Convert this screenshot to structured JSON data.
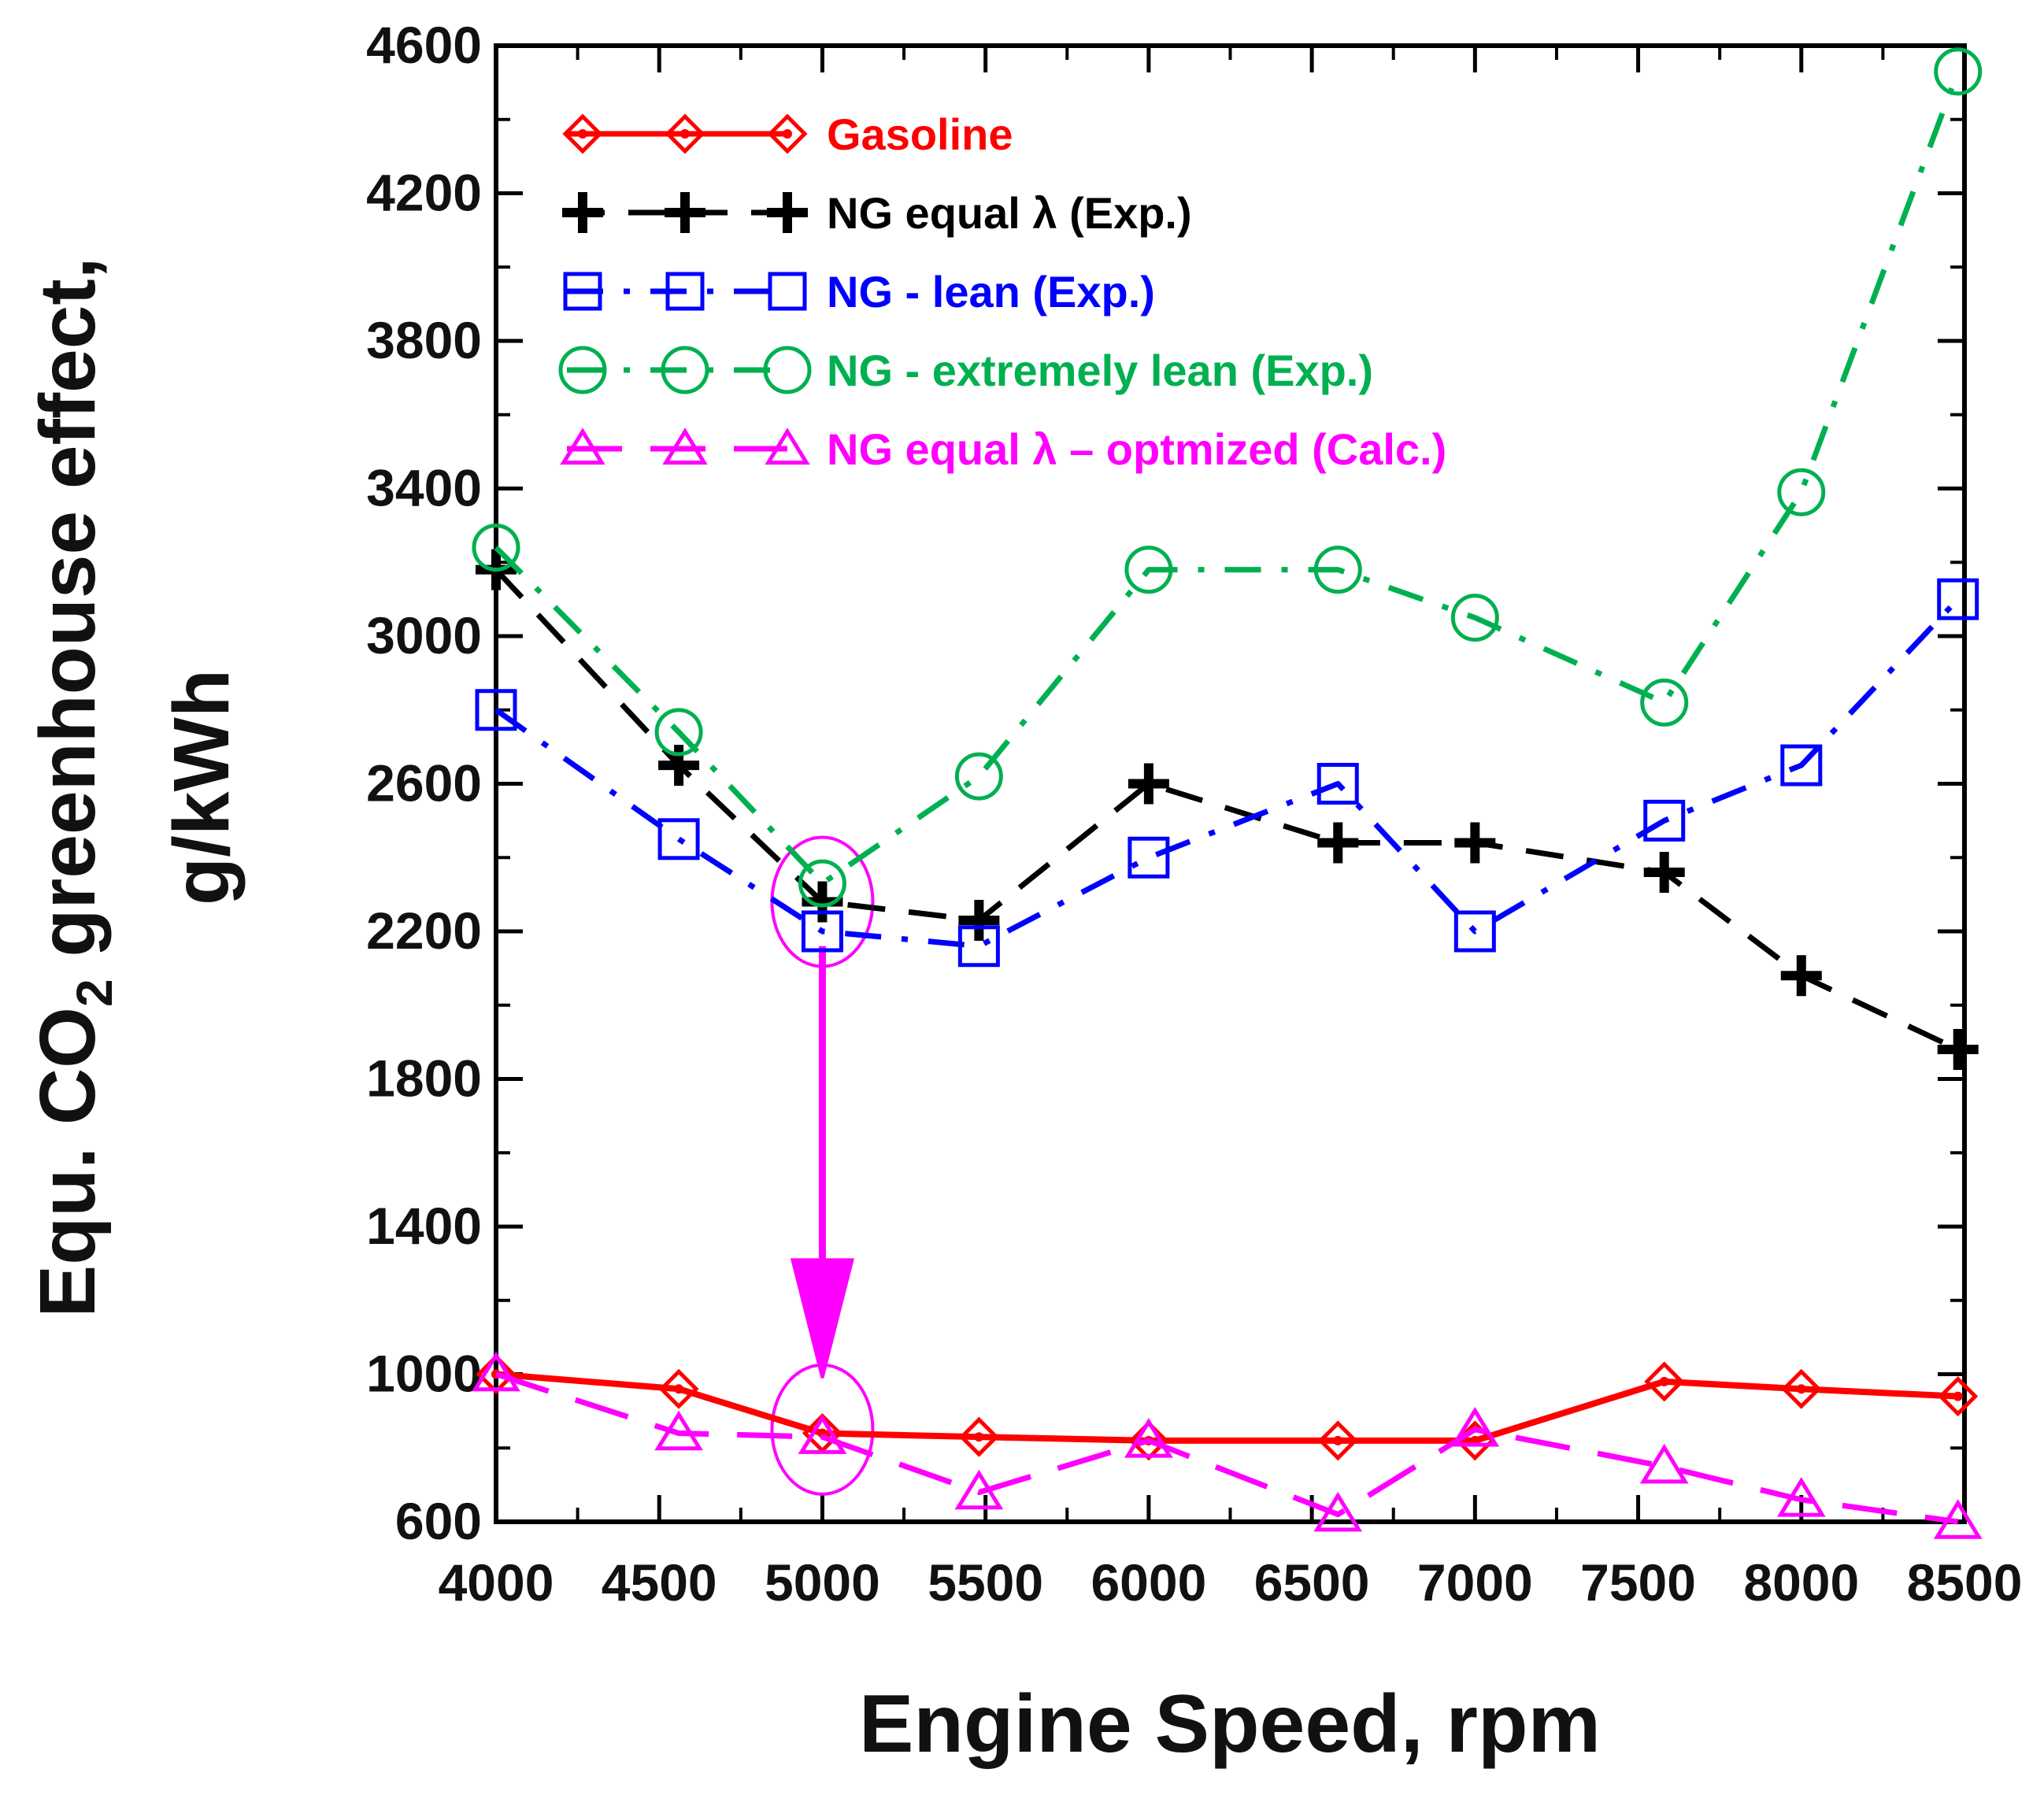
{
  "chart_data": {
    "type": "line",
    "title": "",
    "xlabel": "Engine Speed, rpm",
    "ylabel_parts": {
      "main": "Equ. CO",
      "subscript": "2",
      "rest": " greenhouse effect,",
      "line2": "g/kWh"
    },
    "xlim": [
      4000,
      8500
    ],
    "ylim": [
      600,
      4600
    ],
    "x_ticks": [
      "4000",
      "4500",
      "5000",
      "5500",
      "6000",
      "6500",
      "7000",
      "7500",
      "8000",
      "8500"
    ],
    "y_ticks": [
      "600",
      "1000",
      "1400",
      "1800",
      "2200",
      "2600",
      "3000",
      "3400",
      "3800",
      "4200",
      "4600"
    ],
    "legend_position": "top-left",
    "series": [
      {
        "name": "Gasoline",
        "color": "#ff0000",
        "marker": "diamond",
        "dash": "solid",
        "x": [
          4000,
          4560,
          5000,
          5480,
          6000,
          6580,
          7000,
          7580,
          8000,
          8480
        ],
        "y": [
          1000,
          960,
          840,
          830,
          820,
          820,
          820,
          980,
          960,
          940
        ]
      },
      {
        "name": "NG equal λ (Exp.)",
        "color": "#000000",
        "marker": "plus",
        "dash": "dash",
        "x": [
          4000,
          4560,
          5000,
          5480,
          6000,
          6580,
          7000,
          7580,
          8000,
          8480
        ],
        "y": [
          3180,
          2650,
          2280,
          2230,
          2600,
          2440,
          2440,
          2360,
          2080,
          1880
        ]
      },
      {
        "name": "NG - lean (Exp.)",
        "color": "#0000ff",
        "marker": "square",
        "dash": "dashdot",
        "x": [
          4000,
          4560,
          5000,
          5480,
          6000,
          6580,
          7000,
          7580,
          8000,
          8480
        ],
        "y": [
          2800,
          2450,
          2200,
          2160,
          2400,
          2600,
          2200,
          2500,
          2650,
          3100
        ]
      },
      {
        "name": "NG - extremely lean (Exp.)",
        "color": "#00b050",
        "marker": "circle",
        "dash": "dashdot",
        "x": [
          4000,
          4560,
          5000,
          5480,
          6000,
          6580,
          7000,
          7580,
          8000,
          8480
        ],
        "y": [
          3240,
          2740,
          2330,
          2620,
          3180,
          3180,
          3050,
          2820,
          3390,
          4530
        ]
      },
      {
        "name": "NG equal λ – optmized (Calc.)",
        "color": "#ff00ff",
        "marker": "triangle",
        "dash": "longdash",
        "x": [
          4000,
          4560,
          5000,
          5480,
          6000,
          6580,
          7000,
          7580,
          8000,
          8480
        ],
        "y": [
          1000,
          840,
          830,
          680,
          820,
          620,
          850,
          750,
          660,
          600
        ]
      }
    ],
    "annotations": [
      {
        "type": "ellipse",
        "x": 5000,
        "y": 2280,
        "color": "#ff00ff"
      },
      {
        "type": "ellipse",
        "x": 5000,
        "y": 850,
        "color": "#ff00ff"
      },
      {
        "type": "arrow",
        "from": [
          5000,
          2160
        ],
        "to": [
          5000,
          990
        ],
        "color": "#ff00ff"
      }
    ]
  }
}
